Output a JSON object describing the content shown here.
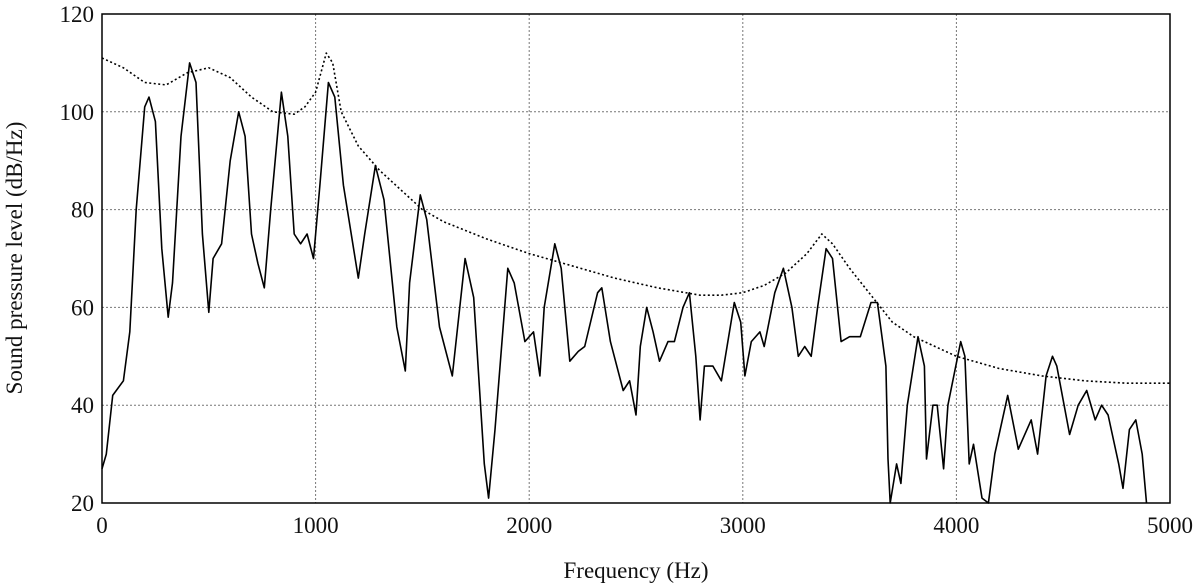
{
  "chart_data": {
    "type": "line",
    "xlabel": "Frequency (Hz)",
    "ylabel": "Sound pressure level (dB/Hz)",
    "xlim": [
      0,
      5000
    ],
    "xticks": [
      0,
      1000,
      2000,
      3000,
      4000,
      5000
    ],
    "ylim": [
      20,
      120
    ],
    "yticks": [
      20,
      40,
      60,
      80,
      100,
      120
    ],
    "grid": true,
    "series": [
      {
        "color": "#000000",
        "linestyle": "solid",
        "x": [
          0,
          20,
          50,
          100,
          130,
          160,
          200,
          220,
          250,
          280,
          310,
          330,
          370,
          410,
          440,
          470,
          500,
          520,
          560,
          600,
          640,
          670,
          700,
          730,
          760,
          790,
          840,
          870,
          900,
          930,
          960,
          990,
          1020,
          1060,
          1090,
          1130,
          1200,
          1230,
          1280,
          1320,
          1380,
          1420,
          1440,
          1490,
          1520,
          1580,
          1640,
          1700,
          1740,
          1790,
          1810,
          1840,
          1900,
          1930,
          1980,
          2020,
          2050,
          2070,
          2120,
          2150,
          2190,
          2230,
          2260,
          2320,
          2340,
          2380,
          2440,
          2470,
          2500,
          2520,
          2550,
          2580,
          2610,
          2650,
          2680,
          2720,
          2750,
          2780,
          2800,
          2820,
          2860,
          2900,
          2960,
          2990,
          3010,
          3040,
          3080,
          3100,
          3150,
          3190,
          3230,
          3260,
          3290,
          3320,
          3350,
          3390,
          3420,
          3460,
          3500,
          3550,
          3600,
          3630,
          3670,
          3680,
          3690,
          3720,
          3740,
          3770,
          3820,
          3850,
          3860,
          3890,
          3910,
          3940,
          3960,
          4020,
          4040,
          4060,
          4080,
          4120,
          4150,
          4180,
          4240,
          4290,
          4350,
          4380,
          4420,
          4450,
          4470,
          4530,
          4570,
          4610,
          4650,
          4680,
          4710,
          4760,
          4780,
          4810,
          4840,
          4870,
          4890
        ],
        "values": [
          27,
          30,
          42,
          45,
          55,
          80,
          101,
          103,
          98,
          72,
          58,
          65,
          95,
          110,
          106,
          75,
          59,
          70,
          73,
          90,
          100,
          95,
          75,
          69,
          64,
          80,
          104,
          95,
          75,
          73,
          75,
          70,
          85,
          106,
          103,
          85,
          66,
          75,
          89,
          82,
          56,
          47,
          65,
          83,
          78,
          56,
          46,
          70,
          62,
          28,
          21,
          35,
          68,
          65,
          53,
          55,
          46,
          60,
          73,
          68,
          49,
          51,
          52,
          63,
          64,
          53,
          43,
          45,
          38,
          52,
          60,
          55,
          49,
          53,
          53,
          60,
          63,
          50,
          37,
          48,
          48,
          45,
          61,
          57,
          46,
          53,
          55,
          52,
          63,
          68,
          60,
          50,
          52,
          50,
          60,
          72,
          70,
          53,
          54,
          54,
          61,
          61,
          48,
          29,
          20,
          28,
          24,
          40,
          54,
          48,
          29,
          40,
          40,
          27,
          40,
          53,
          50,
          28,
          32,
          21,
          20,
          30,
          42,
          31,
          37,
          30,
          46,
          50,
          48,
          34,
          40,
          43,
          37,
          40,
          38,
          28,
          23,
          35,
          37,
          30,
          20
        ]
      },
      {
        "color": "#000000",
        "linestyle": "dotted",
        "x": [
          0,
          100,
          200,
          300,
          400,
          500,
          600,
          700,
          800,
          900,
          950,
          1000,
          1050,
          1080,
          1120,
          1200,
          1300,
          1400,
          1500,
          1600,
          1800,
          2000,
          2200,
          2400,
          2600,
          2800,
          2900,
          3000,
          3100,
          3200,
          3300,
          3370,
          3420,
          3500,
          3600,
          3700,
          3800,
          4000,
          4200,
          4400,
          4600,
          4800,
          5000
        ],
        "values": [
          111,
          109,
          106,
          105.5,
          108,
          109,
          107,
          103,
          100,
          99.5,
          101,
          104,
          112,
          110,
          100,
          93,
          88,
          84,
          80,
          77.5,
          74,
          71,
          68.5,
          66,
          64,
          62.5,
          62.5,
          63,
          64.5,
          67,
          71,
          75,
          73,
          68,
          62.5,
          57,
          54,
          50,
          47.5,
          46,
          45,
          44.5,
          44.5
        ]
      }
    ]
  }
}
